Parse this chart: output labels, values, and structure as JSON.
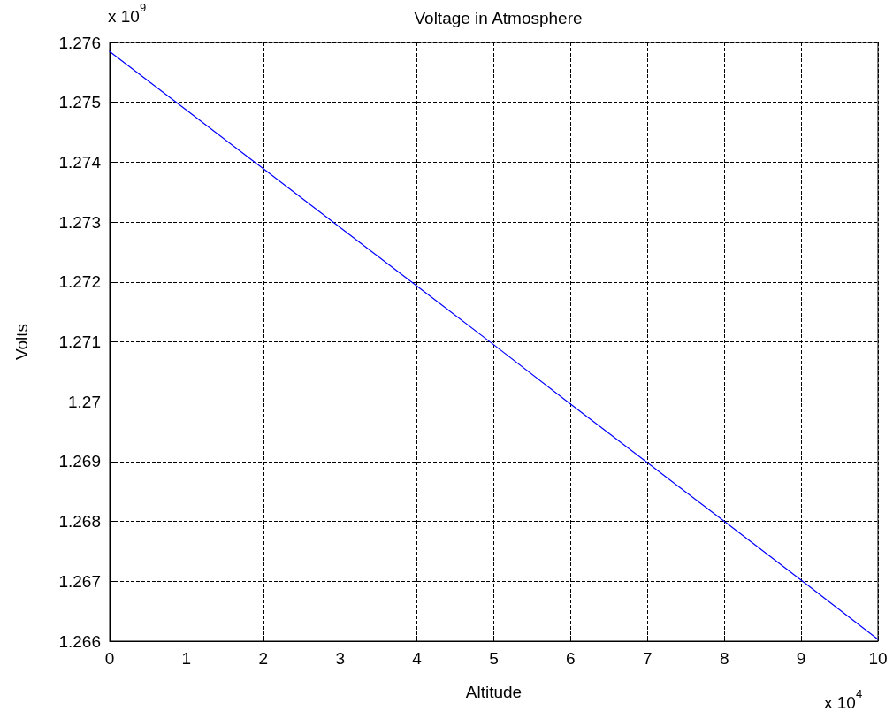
{
  "chart_data": {
    "type": "line",
    "title": "Voltage in Atmosphere",
    "xlabel": "Altitude",
    "ylabel": "Volts",
    "x": [
      0,
      1,
      2,
      3,
      4,
      5,
      6,
      7,
      8,
      9,
      10
    ],
    "series": [
      {
        "color": "#0000ff",
        "values": [
          1.27585,
          1.27487,
          1.27389,
          1.27291,
          1.27193,
          1.27095,
          1.26996,
          1.26898,
          1.268,
          1.26702,
          1.26603
        ]
      }
    ],
    "xlim": [
      0,
      10
    ],
    "xticks": [
      0,
      1,
      2,
      3,
      4,
      5,
      6,
      7,
      8,
      9,
      10
    ],
    "ylim": [
      1.266,
      1.276
    ],
    "yticks": [
      {
        "value": 1.266,
        "label": "1.266"
      },
      {
        "value": 1.267,
        "label": "1.267"
      },
      {
        "value": 1.268,
        "label": "1.268"
      },
      {
        "value": 1.269,
        "label": "1.269"
      },
      {
        "value": 1.27,
        "label": "1.27"
      },
      {
        "value": 1.271,
        "label": "1.271"
      },
      {
        "value": 1.272,
        "label": "1.272"
      },
      {
        "value": 1.273,
        "label": "1.273"
      },
      {
        "value": 1.274,
        "label": "1.274"
      },
      {
        "value": 1.275,
        "label": "1.275"
      },
      {
        "value": 1.276,
        "label": "1.276"
      }
    ],
    "annotations": [
      "x 10$^{9}$",
      "x 10$^{4}$"
    ],
    "grid": true,
    "line_style": "solid",
    "marker": "none"
  }
}
